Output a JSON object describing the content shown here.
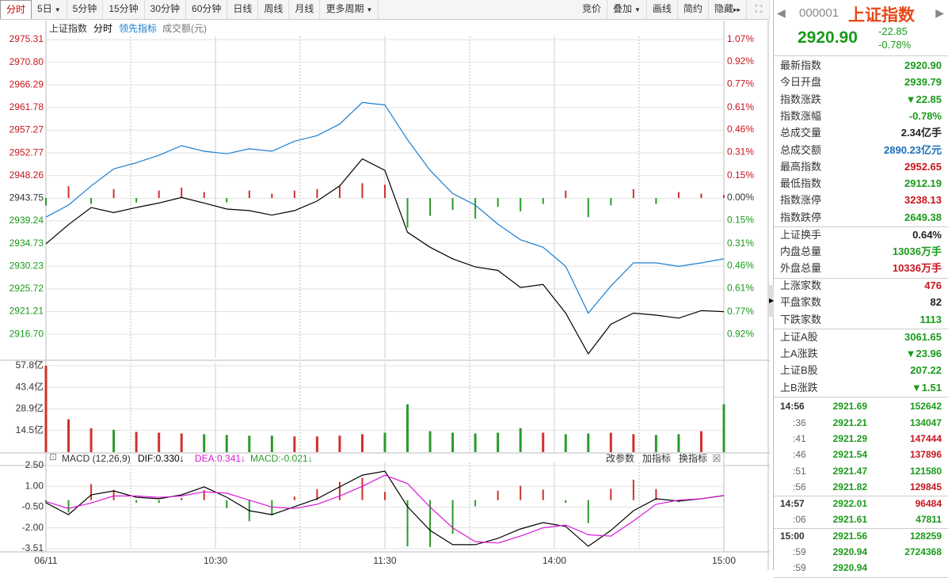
{
  "toolbar": {
    "tabs": [
      {
        "label": "分时",
        "active": true
      },
      {
        "label": "5日",
        "menu": true
      },
      {
        "label": "5分钟"
      },
      {
        "label": "15分钟"
      },
      {
        "label": "30分钟"
      },
      {
        "label": "60分钟"
      },
      {
        "label": "日线"
      },
      {
        "label": "周线"
      },
      {
        "label": "月线"
      },
      {
        "label": "更多周期",
        "menu": true
      }
    ],
    "tools": [
      {
        "label": "竞价"
      },
      {
        "label": "叠加",
        "menu": true
      },
      {
        "label": "画线"
      },
      {
        "label": "简约"
      },
      {
        "label": "隐藏"
      }
    ]
  },
  "time_axis": {
    "x": [
      0,
      8,
      16,
      24,
      32,
      40,
      48,
      56,
      64,
      72,
      80,
      88,
      96,
      104,
      112,
      120,
      128,
      136,
      144,
      152,
      160,
      168,
      176,
      184,
      192,
      200,
      208,
      216,
      224,
      232,
      240
    ],
    "xlim": [
      0,
      240
    ],
    "xticks": [
      {
        "value": 0,
        "label": "06/11"
      },
      {
        "value": 60,
        "label": "10:30"
      },
      {
        "value": 120,
        "label": "11:30"
      },
      {
        "value": 180,
        "label": "14:00"
      },
      {
        "value": 240,
        "label": "15:00"
      }
    ],
    "xgrid": [
      30,
      90,
      150,
      210
    ]
  },
  "chart_data": [
    {
      "type": "line",
      "title": "上证指数",
      "ylim": [
        2912.0,
        2975.31
      ],
      "y2lim": [
        -1.08,
        1.07
      ],
      "yticks": [
        2975.31,
        {
          "value": 2970.8,
          "label": "2970.80"
        },
        2966.29,
        2961.78,
        2957.27,
        2952.77,
        2948.26,
        2943.75,
        2939.24,
        2934.73,
        2930.23,
        2925.72,
        2921.21,
        {
          "value": 2916.7,
          "label": "2916.70"
        }
      ],
      "y2ticks": [
        {
          "value": 1.07,
          "label": "1.07%"
        },
        {
          "value": 0.92,
          "label": "0.92%"
        },
        {
          "value": 0.77,
          "label": "0.77%"
        },
        {
          "value": 0.61,
          "label": "0.61%"
        },
        {
          "value": 0.46,
          "label": "0.46%"
        },
        {
          "value": 0.31,
          "label": "0.31%"
        },
        {
          "value": 0.15,
          "label": "0.15%"
        },
        {
          "value": 0,
          "label": "0.00%"
        },
        {
          "value": -0.15,
          "label": "0.15%"
        },
        {
          "value": -0.31,
          "label": "0.31%"
        },
        {
          "value": -0.46,
          "label": "0.46%"
        },
        {
          "value": -0.61,
          "label": "0.61%"
        },
        {
          "value": -0.77,
          "label": "0.77%"
        },
        {
          "value": -0.92,
          "label": "0.92%"
        }
      ],
      "series": [
        {
          "name": "分时",
          "color": "#000000",
          "values": [
            2934.7,
            2938.5,
            2941.9,
            2940.9,
            2941.9,
            2942.8,
            2943.9,
            2942.8,
            2941.6,
            2941.3,
            2940.4,
            2941.3,
            2943.2,
            2946.2,
            2951.6,
            2949.3,
            2937.0,
            2934.0,
            2931.7,
            2930.1,
            2929.4,
            2926.0,
            2926.6,
            2920.9,
            2912.8,
            2918.7,
            2920.9,
            2920.5,
            2919.9,
            2921.4,
            2921.2
          ]
        },
        {
          "name": "领先指标",
          "color": "#1a7fd0",
          "values": [
            2940.0,
            2942.4,
            2946.2,
            2949.6,
            2950.8,
            2952.3,
            2954.2,
            2953.1,
            2952.6,
            2953.6,
            2953.1,
            2955.1,
            2956.2,
            2958.5,
            2962.8,
            2962.3,
            2955.4,
            2949.3,
            2944.7,
            2942.4,
            2938.6,
            2935.5,
            2934.0,
            2930.2,
            2920.9,
            2926.3,
            2930.9,
            2930.9,
            2930.2,
            2930.9,
            2931.7
          ]
        }
      ],
      "lead_bars": {
        "axis": "y2",
        "up_color": "#d0312d",
        "down_color": "#2a9a2a",
        "values": [
          -0.05,
          0.08,
          -0.04,
          0.06,
          -0.03,
          0.05,
          0.07,
          0.04,
          -0.03,
          0.05,
          0.03,
          0.05,
          0.06,
          0.08,
          0.1,
          0.09,
          -0.2,
          -0.12,
          -0.08,
          -0.14,
          -0.06,
          -0.09,
          -0.04,
          0.05,
          -0.13,
          -0.05,
          0.06,
          -0.04,
          0.04,
          0.03,
          0.02
        ]
      }
    },
    {
      "type": "bar",
      "title": "成交额(元)",
      "ylim": [
        0,
        57.8
      ],
      "yticks": [
        {
          "value": 57.8,
          "label": "57.8亿"
        },
        {
          "value": 43.4,
          "label": "43.4亿"
        },
        {
          "value": 28.9,
          "label": "28.9亿"
        },
        {
          "value": 14.5,
          "label": "14.5亿"
        }
      ],
      "up_color": "#d0312d",
      "down_color": "#2a9a2a",
      "values": [
        57.8,
        22,
        16,
        15,
        13.5,
        13,
        12.5,
        12,
        11.5,
        11,
        11,
        10.5,
        10.5,
        11,
        12,
        13,
        32,
        14,
        13,
        12.5,
        13,
        16,
        13,
        12,
        12.5,
        13,
        12,
        11.5,
        12,
        14,
        32
      ]
    },
    {
      "type": "macd",
      "title": "MACD (12,26,9)",
      "ylim": [
        -3.51,
        2.5
      ],
      "yticks": [
        {
          "value": 2.5,
          "label": "2.50"
        },
        {
          "value": 1,
          "label": "1.00"
        },
        {
          "value": -0.5,
          "label": "-0.50"
        },
        {
          "value": -2,
          "label": "-2.00"
        },
        -3.51
      ],
      "series": [
        {
          "readout": "DIF:0.330↓",
          "color": "#000000",
          "values": [
            -0.19,
            -1.05,
            0.38,
            0.67,
            0.21,
            0.1,
            0.38,
            0.96,
            0.21,
            -0.76,
            -1.05,
            -0.47,
            0.1,
            0.96,
            1.81,
            2.1,
            -0.47,
            -2.19,
            -3.22,
            -3.22,
            -2.76,
            -2.08,
            -1.62,
            -1.9,
            -3.33,
            -2.19,
            -0.76,
            0.1,
            -0.07,
            0.1,
            0.33
          ]
        },
        {
          "readout": "DEA:0.341↓",
          "color": "#d81ad8",
          "values": [
            -0.1,
            -0.6,
            -0.2,
            0.3,
            0.3,
            0.2,
            0.3,
            0.6,
            0.5,
            0.0,
            -0.5,
            -0.6,
            -0.3,
            0.3,
            1.0,
            1.8,
            1.2,
            -0.5,
            -2.0,
            -3.0,
            -3.1,
            -2.6,
            -2.0,
            -1.8,
            -2.5,
            -2.6,
            -1.5,
            -0.3,
            0.0,
            0.1,
            0.341
          ]
        }
      ],
      "hist": {
        "readout": "MACD:-0.021↓",
        "color": "#2a9a2a",
        "up_color": "#d0312d",
        "down_color": "#2a9a2a",
        "values": [
          -0.18,
          -0.9,
          1.16,
          0.74,
          -0.18,
          -0.2,
          0.16,
          0.72,
          -0.58,
          -1.52,
          -1.1,
          0.26,
          0.8,
          1.32,
          1.62,
          0.6,
          -3.34,
          -3.38,
          -2.44,
          -0.44,
          0.68,
          1.04,
          0.76,
          -0.2,
          -1.66,
          0.82,
          1.48,
          0.8,
          -0.14,
          0,
          -0.021
        ]
      },
      "buttons": [
        "改参数",
        "加指标",
        "换指标"
      ]
    }
  ],
  "quote": {
    "code": "000001",
    "name": "上证指数",
    "price": "2920.90",
    "change": "-22.85",
    "pct": "-0.78%",
    "groups": [
      [
        {
          "label": "最新指数",
          "value": "2920.90",
          "color": "#1a9a1a"
        },
        {
          "label": "今日开盘",
          "value": "2939.79",
          "color": "#1a9a1a"
        },
        {
          "label": "指数涨跌",
          "value": "▼22.85",
          "color": "#1a9a1a"
        },
        {
          "label": "指数涨幅",
          "value": "-0.78%",
          "color": "#1a9a1a"
        },
        {
          "label": "总成交量",
          "value": "2.34亿手",
          "color": "#222222"
        },
        {
          "label": "总成交额",
          "value": "2890.23亿元",
          "color": "#1a6fb8"
        },
        {
          "label": "最高指数",
          "value": "2952.65",
          "color": "#c8161d"
        },
        {
          "label": "最低指数",
          "value": "2912.19",
          "color": "#1a9a1a"
        },
        {
          "label": "指数涨停",
          "value": "3238.13",
          "color": "#c8161d"
        },
        {
          "label": "指数跌停",
          "value": "2649.38",
          "color": "#1a9a1a"
        }
      ],
      [
        {
          "label": "上证换手",
          "value": "0.64%",
          "color": "#222222"
        },
        {
          "label": "内盘总量",
          "value": "13036万手",
          "color": "#1a9a1a"
        },
        {
          "label": "外盘总量",
          "value": "10336万手",
          "color": "#c8161d"
        }
      ],
      [
        {
          "label": "上涨家数",
          "value": "476",
          "color": "#c8161d"
        },
        {
          "label": "平盘家数",
          "value": "82",
          "color": "#222222"
        },
        {
          "label": "下跌家数",
          "value": "1113",
          "color": "#1a9a1a"
        }
      ],
      [
        {
          "label": "上证A股",
          "value": "3061.65",
          "color": "#1a9a1a"
        },
        {
          "label": "上A涨跌",
          "value": "▼23.96",
          "color": "#1a9a1a"
        },
        {
          "label": "上证B股",
          "value": "207.22",
          "color": "#1a9a1a"
        },
        {
          "label": "上B涨跌",
          "value": "▼1.51",
          "color": "#1a9a1a"
        }
      ]
    ],
    "ticks": [
      [
        {
          "time": "14:56",
          "price": "2921.69",
          "volume": "152642",
          "up": false
        },
        {
          "time": ":36",
          "price": "2921.21",
          "volume": "134047",
          "up": false
        },
        {
          "time": ":41",
          "price": "2921.29",
          "volume": "147444",
          "up": true
        },
        {
          "time": ":46",
          "price": "2921.54",
          "volume": "137896",
          "up": true
        },
        {
          "time": ":51",
          "price": "2921.47",
          "volume": "121580",
          "up": false
        },
        {
          "time": ":56",
          "price": "2921.82",
          "volume": "129845",
          "up": true
        }
      ],
      [
        {
          "time": "14:57",
          "price": "2922.01",
          "volume": "96484",
          "up": true
        },
        {
          "time": ":06",
          "price": "2921.61",
          "volume": "47811",
          "up": false
        }
      ],
      [
        {
          "time": "15:00",
          "price": "2921.56",
          "volume": "128259",
          "up": false
        },
        {
          "time": ":59",
          "price": "2920.94",
          "volume": "2724368",
          "up": false
        },
        {
          "time": ":59",
          "price": "2920.94",
          "volume": "",
          "up": false
        }
      ]
    ]
  }
}
